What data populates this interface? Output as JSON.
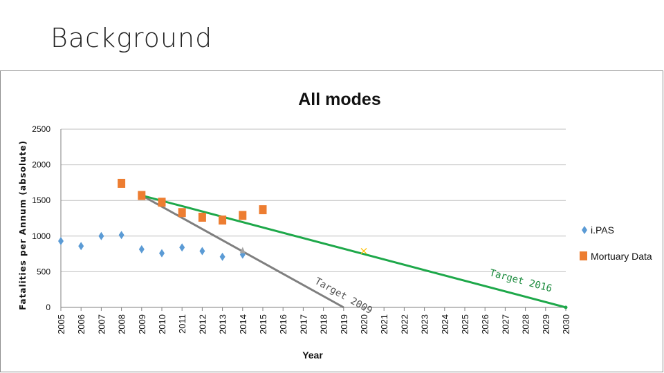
{
  "slide": {
    "title": "Background"
  },
  "chart_data": {
    "type": "scatter",
    "title": "All modes",
    "xlabel": "Year",
    "ylabel": "Fatalities per Annum (absolute)",
    "xlim": [
      2005,
      2030
    ],
    "ylim": [
      0,
      2500
    ],
    "yticks": [
      0,
      500,
      1000,
      1500,
      2000,
      2500
    ],
    "xticks": [
      2005,
      2006,
      2007,
      2008,
      2009,
      2010,
      2011,
      2012,
      2013,
      2014,
      2015,
      2016,
      2017,
      2018,
      2019,
      2020,
      2021,
      2022,
      2023,
      2024,
      2025,
      2026,
      2027,
      2028,
      2029,
      2030
    ],
    "grid": "horizontal",
    "legend_position": "right",
    "series": [
      {
        "name": "i.PAS",
        "marker": "diamond",
        "color": "#5b9bd5",
        "points": [
          [
            2005,
            930
          ],
          [
            2006,
            860
          ],
          [
            2007,
            1000
          ],
          [
            2008,
            1015
          ],
          [
            2009,
            815
          ],
          [
            2010,
            760
          ],
          [
            2011,
            840
          ],
          [
            2012,
            790
          ],
          [
            2013,
            710
          ],
          [
            2014,
            740
          ]
        ]
      },
      {
        "name": "Mortuary Data",
        "marker": "square",
        "color": "#ed7d31",
        "points": [
          [
            2008,
            1740
          ],
          [
            2009,
            1570
          ],
          [
            2010,
            1475
          ],
          [
            2011,
            1330
          ],
          [
            2012,
            1265
          ],
          [
            2013,
            1225
          ],
          [
            2014,
            1290
          ],
          [
            2015,
            1370
          ]
        ]
      }
    ],
    "trendlines": [
      {
        "label": "Target 2009",
        "color": "#7f7f7f",
        "from": [
          2009,
          1570
        ],
        "to": [
          2019,
          0
        ]
      },
      {
        "label": "Target 2016",
        "color": "#1ea84a",
        "from": [
          2009,
          1570
        ],
        "to": [
          2030,
          0
        ]
      }
    ],
    "extra_markers": [
      {
        "x": 2014,
        "y": 790,
        "marker": "triangle",
        "color": "#a5a5a5"
      },
      {
        "x": 2020,
        "y": 790,
        "marker": "x",
        "color": "#ffc000"
      },
      {
        "x": 2030,
        "y": 0,
        "marker": "dot",
        "color": "#1ea84a"
      }
    ]
  }
}
